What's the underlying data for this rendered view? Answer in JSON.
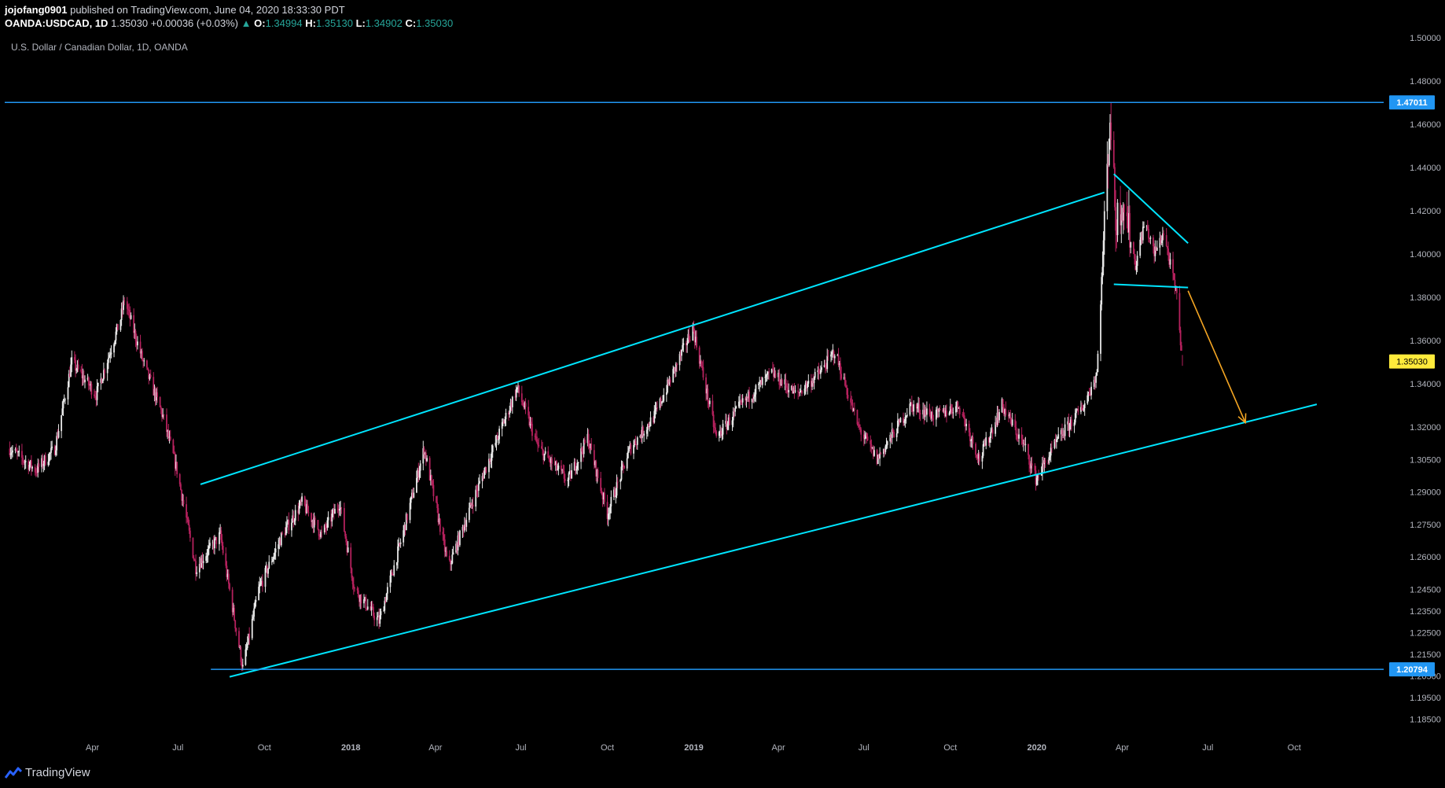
{
  "header": {
    "author": "jojofang0901",
    "published_text": "published on TradingView.com, June 04, 2020 18:33:30 PDT",
    "symbol": "OANDA:USDCAD, 1D",
    "last": "1.35030",
    "change_arrow": "▲",
    "change": "+0.00036 (+0.03%)",
    "o_label": "O:",
    "o_value": "1.34994",
    "h_label": "H:",
    "h_value": "1.35130",
    "l_label": "L:",
    "l_value": "1.34902",
    "c_label": "C:",
    "c_value": "1.35030"
  },
  "footer": {
    "brand": "TradingView",
    "logo_icon": "tradingview-logo-icon"
  },
  "colors": {
    "background": "#000000",
    "up_candle": "#e8e8e8",
    "down_candle": "#b5215d",
    "trendline": "#00e5ff",
    "horizontal_line": "#2196f3",
    "arrow": "#f5a623",
    "price_label": "#ffeb3b",
    "axis_text": "#b2b5be"
  },
  "chart_data": {
    "type": "candlestick",
    "title": "U.S. Dollar / Canadian Dollar, 1D, OANDA",
    "y_range": [
      1.18,
      1.5
    ],
    "y_ticks": [
      "1.50000",
      "1.48000",
      "1.46000",
      "1.44000",
      "1.42000",
      "1.40000",
      "1.38000",
      "1.36000",
      "1.34000",
      "1.32000",
      "1.30500",
      "1.29000",
      "1.27500",
      "1.26000",
      "1.24500",
      "1.23500",
      "1.22500",
      "1.21500",
      "1.20500",
      "1.19500",
      "1.18500"
    ],
    "x_ticks": [
      {
        "label": "Apr",
        "date": "2017-04-01",
        "bold": false
      },
      {
        "label": "Jul",
        "date": "2017-07-01",
        "bold": false
      },
      {
        "label": "Oct",
        "date": "2017-10-01",
        "bold": false
      },
      {
        "label": "2018",
        "date": "2018-01-01",
        "bold": true
      },
      {
        "label": "Apr",
        "date": "2018-04-01",
        "bold": false
      },
      {
        "label": "Jul",
        "date": "2018-07-01",
        "bold": false
      },
      {
        "label": "Oct",
        "date": "2018-10-01",
        "bold": false
      },
      {
        "label": "2019",
        "date": "2019-01-01",
        "bold": true
      },
      {
        "label": "Apr",
        "date": "2019-04-01",
        "bold": false
      },
      {
        "label": "Jul",
        "date": "2019-07-01",
        "bold": false
      },
      {
        "label": "Oct",
        "date": "2019-10-01",
        "bold": false
      },
      {
        "label": "2020",
        "date": "2020-01-01",
        "bold": true
      },
      {
        "label": "Apr",
        "date": "2020-04-01",
        "bold": false
      },
      {
        "label": "Jul",
        "date": "2020-07-01",
        "bold": false
      },
      {
        "label": "Oct",
        "date": "2020-10-01",
        "bold": false
      }
    ],
    "price_path": [
      [
        "2017-01-03",
        1.31
      ],
      [
        "2017-01-31",
        1.3
      ],
      [
        "2017-02-20",
        1.31
      ],
      [
        "2017-03-10",
        1.35
      ],
      [
        "2017-04-05",
        1.335
      ],
      [
        "2017-05-01",
        1.37
      ],
      [
        "2017-05-05",
        1.379
      ],
      [
        "2017-05-25",
        1.35
      ],
      [
        "2017-06-15",
        1.325
      ],
      [
        "2017-06-30",
        1.3
      ],
      [
        "2017-07-20",
        1.255
      ],
      [
        "2017-08-15",
        1.27
      ],
      [
        "2017-09-08",
        1.2085
      ],
      [
        "2017-09-25",
        1.245
      ],
      [
        "2017-10-20",
        1.27
      ],
      [
        "2017-11-10",
        1.285
      ],
      [
        "2017-12-01",
        1.27
      ],
      [
        "2017-12-20",
        1.285
      ],
      [
        "2018-01-05",
        1.245
      ],
      [
        "2018-01-31",
        1.23
      ],
      [
        "2018-02-25",
        1.27
      ],
      [
        "2018-03-20",
        1.31
      ],
      [
        "2018-04-15",
        1.255
      ],
      [
        "2018-05-10",
        1.285
      ],
      [
        "2018-06-27",
        1.338
      ],
      [
        "2018-07-20",
        1.31
      ],
      [
        "2018-08-20",
        1.295
      ],
      [
        "2018-09-10",
        1.315
      ],
      [
        "2018-10-01",
        1.28
      ],
      [
        "2018-10-25",
        1.31
      ],
      [
        "2018-11-20",
        1.325
      ],
      [
        "2018-12-31",
        1.366
      ],
      [
        "2019-01-25",
        1.315
      ],
      [
        "2019-02-20",
        1.33
      ],
      [
        "2019-03-25",
        1.345
      ],
      [
        "2019-04-20",
        1.335
      ],
      [
        "2019-05-15",
        1.345
      ],
      [
        "2019-05-31",
        1.355
      ],
      [
        "2019-06-25",
        1.32
      ],
      [
        "2019-07-15",
        1.305
      ],
      [
        "2019-08-20",
        1.33
      ],
      [
        "2019-09-15",
        1.325
      ],
      [
        "2019-10-10",
        1.33
      ],
      [
        "2019-11-01",
        1.305
      ],
      [
        "2019-11-25",
        1.33
      ],
      [
        "2019-12-20",
        1.31
      ],
      [
        "2019-12-31",
        1.296
      ],
      [
        "2020-01-25",
        1.315
      ],
      [
        "2020-02-20",
        1.33
      ],
      [
        "2020-03-05",
        1.345
      ],
      [
        "2020-03-19",
        1.465
      ],
      [
        "2020-03-25",
        1.415
      ],
      [
        "2020-04-02",
        1.425
      ],
      [
        "2020-04-15",
        1.395
      ],
      [
        "2020-04-25",
        1.415
      ],
      [
        "2020-05-05",
        1.4
      ],
      [
        "2020-05-15",
        1.41
      ],
      [
        "2020-05-22",
        1.395
      ],
      [
        "2020-05-29",
        1.38
      ],
      [
        "2020-06-04",
        1.3503
      ]
    ],
    "annotations": {
      "upper_channel": [
        [
          "2017-07-25",
          1.2935
        ],
        [
          "2020-03-13",
          1.4285
        ]
      ],
      "lower_channel": [
        [
          "2017-08-25",
          1.2045
        ],
        [
          "2020-10-25",
          1.3305
        ]
      ],
      "wedge_top": [
        [
          "2020-03-23",
          1.437
        ],
        [
          "2020-06-10",
          1.405
        ]
      ],
      "wedge_bottom": [
        [
          "2020-03-23",
          1.386
        ],
        [
          "2020-06-10",
          1.3845
        ]
      ],
      "horizontal_lines": [
        1.47011,
        1.20794
      ],
      "arrow": [
        [
          "2020-06-10",
          1.383
        ],
        [
          "2020-08-10",
          1.322
        ]
      ]
    },
    "price_labels": [
      {
        "value": 1.47011,
        "text": "1.47011",
        "kind": "line"
      },
      {
        "value": 1.20794,
        "text": "1.20794",
        "kind": "line"
      },
      {
        "value": 1.3503,
        "text": "1.35030",
        "kind": "last"
      }
    ]
  }
}
